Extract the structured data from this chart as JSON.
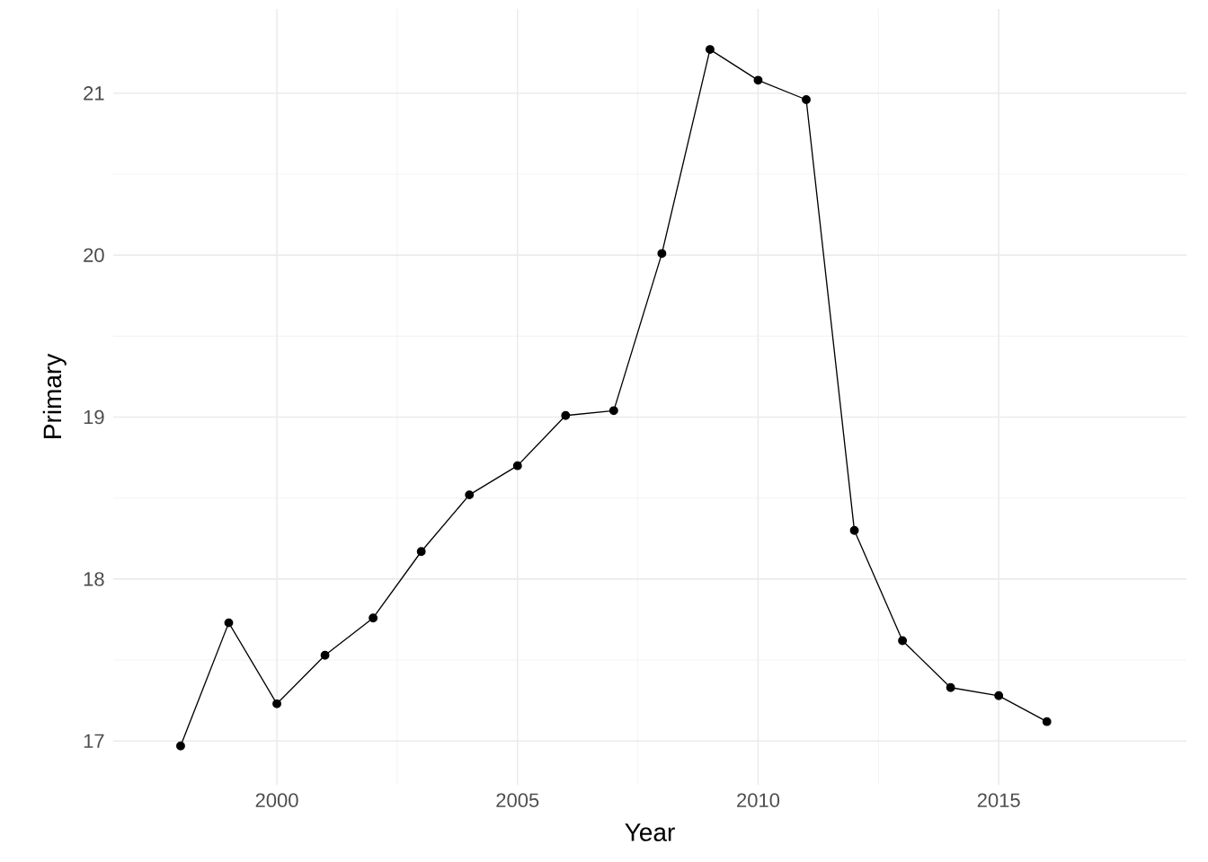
{
  "chart_data": {
    "type": "line",
    "xlabel": "Year",
    "ylabel": "Primary",
    "x": [
      1998,
      1999,
      2000,
      2001,
      2002,
      2003,
      2004,
      2005,
      2006,
      2007,
      2008,
      2009,
      2010,
      2011,
      2012,
      2013,
      2014,
      2015,
      2016
    ],
    "series": [
      {
        "color": "#000000",
        "values": [
          16.97,
          17.73,
          17.23,
          17.53,
          17.76,
          18.17,
          18.52,
          18.7,
          19.01,
          19.04,
          20.01,
          21.27,
          21.08,
          20.96,
          18.3,
          17.62,
          17.33,
          17.28,
          17.12
        ]
      }
    ],
    "xlim": [
      1996.6,
      2018.9
    ],
    "ylim": [
      16.73,
      21.52
    ],
    "xticks": [
      2000,
      2005,
      2010,
      2015
    ],
    "yticks": [
      17,
      18,
      19,
      20,
      21
    ],
    "grid": true,
    "marker": "circle",
    "line_style": "solid"
  }
}
